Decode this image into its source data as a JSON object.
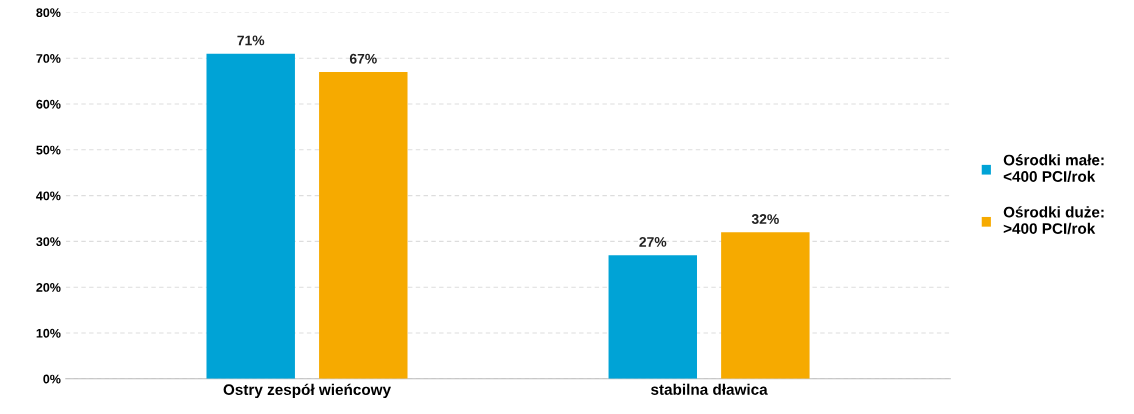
{
  "chart_data": {
    "type": "bar",
    "categories": [
      "Ostry zespół wieńcowy",
      "stabilna dławica"
    ],
    "series": [
      {
        "name": "Ośrodki małe:\n<400 PCI/rok",
        "color": "#00a3d6",
        "values": [
          71,
          27
        ],
        "value_labels": [
          "71%",
          "27%"
        ]
      },
      {
        "name": "Ośrodki duże:\n>400 PCI/rok",
        "color": "#f6aa00",
        "values": [
          67,
          32
        ],
        "value_labels": [
          "67%",
          "32%"
        ]
      }
    ],
    "ylim": [
      0,
      80
    ],
    "yticks": [
      {
        "value": 0,
        "label": "0%"
      },
      {
        "value": 10,
        "label": "10%"
      },
      {
        "value": 20,
        "label": "20%"
      },
      {
        "value": 30,
        "label": "30%"
      },
      {
        "value": 40,
        "label": "40%"
      },
      {
        "value": 50,
        "label": "50%"
      },
      {
        "value": 60,
        "label": "60%"
      },
      {
        "value": 70,
        "label": "70%"
      },
      {
        "value": 80,
        "label": "80%"
      }
    ],
    "grid": "y",
    "legend": "right"
  }
}
